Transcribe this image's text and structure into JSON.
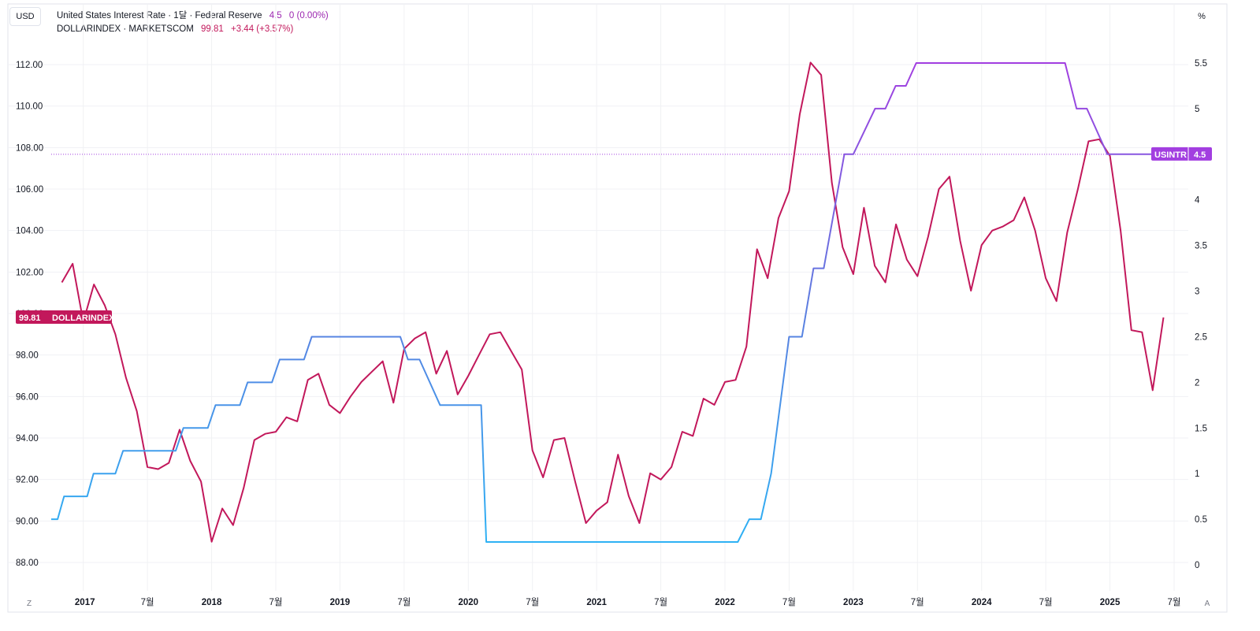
{
  "toolbar": {
    "currency": "USD",
    "percent_unit": "%",
    "corner_left": "Z",
    "corner_right": "A"
  },
  "legend": {
    "series1": {
      "name": "United States Interest Rate · 1달 · Federal Reserve",
      "value": "4.5",
      "change": "0 (0.00%)"
    },
    "series2": {
      "name": "DOLLARINDEX · MARKETSCOM",
      "value": "99.81",
      "change": "+3.44 (+3.57%)"
    }
  },
  "colors": {
    "dxy": "#c2185b",
    "rate_low": "#29b6f6",
    "rate_mid": "#5b7fe0",
    "rate_high": "#a23ee0",
    "grid": "#f0f1f4",
    "axis_text": "#131722"
  },
  "chart_data": {
    "type": "line",
    "x_axis": {
      "tick_labels": [
        "2017",
        "7월",
        "2018",
        "7월",
        "2019",
        "7월",
        "2020",
        "7월",
        "2021",
        "7월",
        "2022",
        "7월",
        "2023",
        "7월",
        "2024",
        "7월",
        "2025",
        "7월"
      ],
      "tick_x": [
        2017.0,
        2017.5,
        2018.0,
        2018.5,
        2019.0,
        2019.5,
        2020.0,
        2020.5,
        2021.0,
        2021.5,
        2022.0,
        2022.5,
        2023.0,
        2023.5,
        2024.0,
        2024.5,
        2025.0,
        2025.5
      ],
      "range": [
        2016.75,
        2025.6
      ]
    },
    "left_axis": {
      "range": [
        87,
        114
      ],
      "ticks": [
        88,
        90,
        92,
        94,
        96,
        98,
        100,
        102,
        104,
        106,
        108,
        110,
        112
      ],
      "tick_labels": [
        "88.00",
        "90.00",
        "92.00",
        "94.00",
        "96.00",
        "98.00",
        "100.00",
        "102.00",
        "104.00",
        "106.00",
        "108.00",
        "110.00",
        "112.00"
      ]
    },
    "right_axis": {
      "range": [
        -0.025,
        5.975
      ],
      "ticks": [
        0,
        0.5,
        1,
        1.5,
        2,
        2.5,
        3,
        3.5,
        4,
        4.5,
        5,
        5.5
      ],
      "tick_labels": [
        "0",
        "0.5",
        "1",
        "1.5",
        "2",
        "2.5",
        "3",
        "3.5",
        "4",
        "4.5",
        "5",
        "5.5"
      ]
    },
    "series": [
      {
        "name": "DOLLARINDEX",
        "axis": "left",
        "last_label": "99.81",
        "tag": "DOLLARINDEX",
        "points": [
          [
            2016.833,
            101.5
          ],
          [
            2016.917,
            102.4
          ],
          [
            2017.0,
            99.6
          ],
          [
            2017.083,
            101.4
          ],
          [
            2017.167,
            100.4
          ],
          [
            2017.25,
            99.0
          ],
          [
            2017.333,
            96.9
          ],
          [
            2017.417,
            95.3
          ],
          [
            2017.5,
            92.6
          ],
          [
            2017.583,
            92.5
          ],
          [
            2017.667,
            92.8
          ],
          [
            2017.75,
            94.4
          ],
          [
            2017.833,
            92.9
          ],
          [
            2017.917,
            91.9
          ],
          [
            2018.0,
            89.0
          ],
          [
            2018.083,
            90.6
          ],
          [
            2018.167,
            89.8
          ],
          [
            2018.25,
            91.6
          ],
          [
            2018.333,
            93.9
          ],
          [
            2018.417,
            94.2
          ],
          [
            2018.5,
            94.3
          ],
          [
            2018.583,
            95.0
          ],
          [
            2018.667,
            94.8
          ],
          [
            2018.75,
            96.8
          ],
          [
            2018.833,
            97.1
          ],
          [
            2018.917,
            95.6
          ],
          [
            2019.0,
            95.2
          ],
          [
            2019.083,
            96.0
          ],
          [
            2019.167,
            96.7
          ],
          [
            2019.25,
            97.2
          ],
          [
            2019.333,
            97.7
          ],
          [
            2019.417,
            95.7
          ],
          [
            2019.5,
            98.3
          ],
          [
            2019.583,
            98.8
          ],
          [
            2019.667,
            99.1
          ],
          [
            2019.75,
            97.1
          ],
          [
            2019.833,
            98.2
          ],
          [
            2019.917,
            96.1
          ],
          [
            2020.0,
            97.0
          ],
          [
            2020.083,
            98.0
          ],
          [
            2020.167,
            99.0
          ],
          [
            2020.25,
            99.1
          ],
          [
            2020.333,
            98.2
          ],
          [
            2020.417,
            97.3
          ],
          [
            2020.5,
            93.4
          ],
          [
            2020.583,
            92.1
          ],
          [
            2020.667,
            93.9
          ],
          [
            2020.75,
            94.0
          ],
          [
            2020.833,
            91.9
          ],
          [
            2020.917,
            89.9
          ],
          [
            2021.0,
            90.5
          ],
          [
            2021.083,
            90.9
          ],
          [
            2021.167,
            93.2
          ],
          [
            2021.25,
            91.2
          ],
          [
            2021.333,
            89.9
          ],
          [
            2021.417,
            92.3
          ],
          [
            2021.5,
            92.0
          ],
          [
            2021.583,
            92.6
          ],
          [
            2021.667,
            94.3
          ],
          [
            2021.75,
            94.1
          ],
          [
            2021.833,
            95.9
          ],
          [
            2021.917,
            95.6
          ],
          [
            2022.0,
            96.7
          ],
          [
            2022.083,
            96.8
          ],
          [
            2022.167,
            98.4
          ],
          [
            2022.25,
            103.1
          ],
          [
            2022.333,
            101.7
          ],
          [
            2022.417,
            104.6
          ],
          [
            2022.5,
            105.9
          ],
          [
            2022.583,
            109.6
          ],
          [
            2022.667,
            112.1
          ],
          [
            2022.75,
            111.5
          ],
          [
            2022.833,
            106.3
          ],
          [
            2022.917,
            103.2
          ],
          [
            2023.0,
            101.9
          ],
          [
            2023.083,
            105.1
          ],
          [
            2023.167,
            102.3
          ],
          [
            2023.25,
            101.5
          ],
          [
            2023.333,
            104.3
          ],
          [
            2023.417,
            102.6
          ],
          [
            2023.5,
            101.8
          ],
          [
            2023.583,
            103.7
          ],
          [
            2023.667,
            106.0
          ],
          [
            2023.75,
            106.6
          ],
          [
            2023.833,
            103.5
          ],
          [
            2023.917,
            101.1
          ],
          [
            2024.0,
            103.3
          ],
          [
            2024.083,
            104.0
          ],
          [
            2024.167,
            104.2
          ],
          [
            2024.25,
            104.5
          ],
          [
            2024.333,
            105.6
          ],
          [
            2024.417,
            104.0
          ],
          [
            2024.5,
            101.7
          ],
          [
            2024.583,
            100.6
          ],
          [
            2024.667,
            103.9
          ],
          [
            2024.75,
            106.0
          ],
          [
            2024.833,
            108.3
          ],
          [
            2024.917,
            108.4
          ],
          [
            2025.0,
            107.6
          ],
          [
            2025.083,
            104.0
          ],
          [
            2025.167,
            99.2
          ],
          [
            2025.25,
            99.1
          ],
          [
            2025.333,
            96.3
          ],
          [
            2025.417,
            99.81
          ]
        ]
      },
      {
        "name": "USINTR",
        "axis": "right",
        "last_label": "4.5",
        "tag": "USINTR",
        "points": [
          [
            2016.75,
            0.5
          ],
          [
            2016.8,
            0.5
          ],
          [
            2016.85,
            0.75
          ],
          [
            2017.03,
            0.75
          ],
          [
            2017.08,
            1.0
          ],
          [
            2017.25,
            1.0
          ],
          [
            2017.31,
            1.25
          ],
          [
            2017.72,
            1.25
          ],
          [
            2017.78,
            1.5
          ],
          [
            2017.97,
            1.5
          ],
          [
            2018.03,
            1.75
          ],
          [
            2018.22,
            1.75
          ],
          [
            2018.28,
            2.0
          ],
          [
            2018.47,
            2.0
          ],
          [
            2018.53,
            2.25
          ],
          [
            2018.72,
            2.25
          ],
          [
            2018.78,
            2.5
          ],
          [
            2019.47,
            2.5
          ],
          [
            2019.53,
            2.25
          ],
          [
            2019.62,
            2.25
          ],
          [
            2019.78,
            1.75
          ],
          [
            2020.1,
            1.75
          ],
          [
            2020.14,
            0.25
          ],
          [
            2022.1,
            0.25
          ],
          [
            2022.19,
            0.5
          ],
          [
            2022.28,
            0.5
          ],
          [
            2022.36,
            1.0
          ],
          [
            2022.5,
            2.5
          ],
          [
            2022.6,
            2.5
          ],
          [
            2022.69,
            3.25
          ],
          [
            2022.77,
            3.25
          ],
          [
            2022.93,
            4.5
          ],
          [
            2023.0,
            4.5
          ],
          [
            2023.17,
            5.0
          ],
          [
            2023.25,
            5.0
          ],
          [
            2023.33,
            5.25
          ],
          [
            2023.41,
            5.25
          ],
          [
            2023.49,
            5.5
          ],
          [
            2024.65,
            5.5
          ],
          [
            2024.74,
            5.0
          ],
          [
            2024.82,
            5.0
          ],
          [
            2024.98,
            4.5
          ],
          [
            2025.6,
            4.5
          ]
        ]
      }
    ],
    "rate_reference_line": 4.5
  }
}
